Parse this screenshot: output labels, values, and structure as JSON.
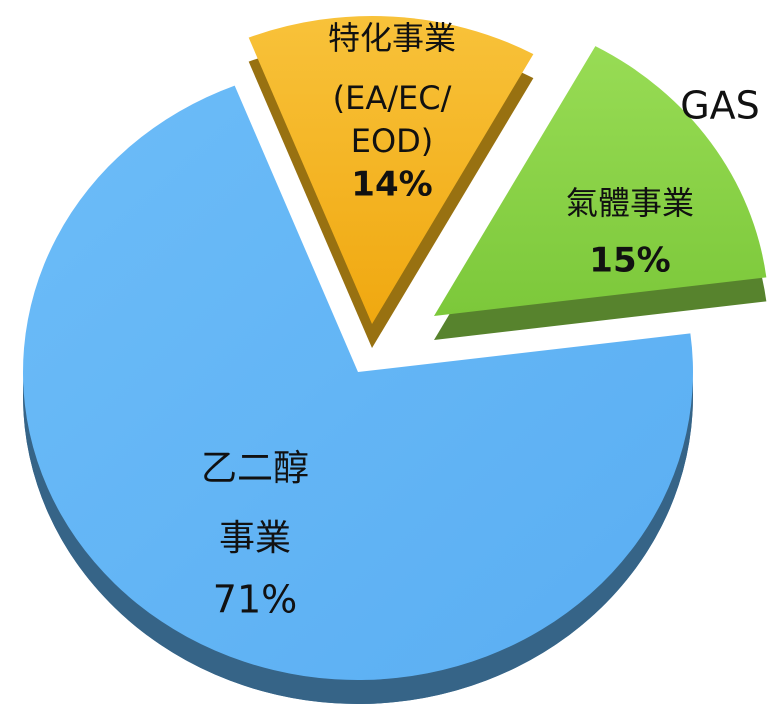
{
  "chart_data": {
    "type": "pie",
    "categories": [
      [
        "特化事業",
        "(EA/EC/",
        "EOD)"
      ],
      [
        "氣體事業"
      ],
      [
        "乙二醇",
        "事業"
      ]
    ],
    "values": [
      14,
      15,
      71
    ],
    "value_labels": [
      "14%",
      "15%",
      "71%"
    ],
    "colors": [
      "#f5b61c",
      "#8dd449",
      "#63b5f6"
    ],
    "annotations": [
      "GAS"
    ]
  }
}
